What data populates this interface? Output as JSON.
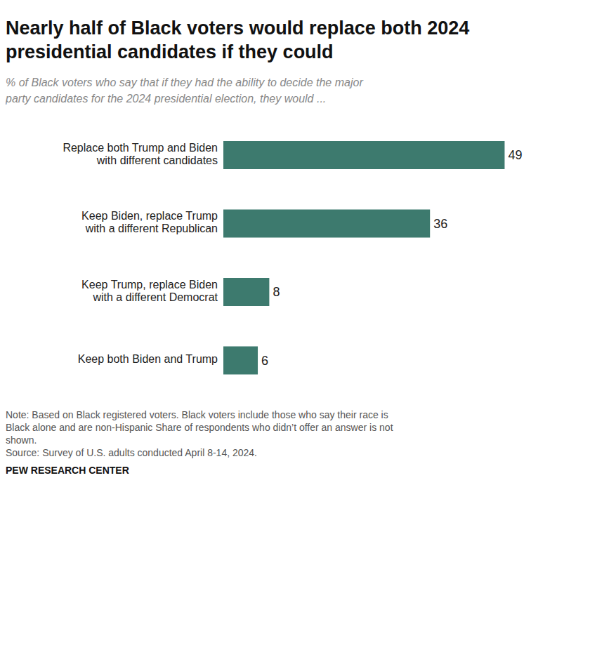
{
  "chart_data": {
    "type": "bar",
    "orientation": "horizontal",
    "title": "Nearly half of Black voters would replace both 2024\npresidential candidates if they could",
    "subtitle": "% of Black voters who say that if they had the ability to decide the major\nparty candidates for the 2024 presidential election, they would ...",
    "categories": [
      "Replace both Trump and Biden\nwith different candidates",
      "Keep Biden, replace Trump\nwith a different Republican",
      "Keep Trump, replace Biden\nwith a different Democrat",
      "Keep both Biden and Trump"
    ],
    "values": [
      49,
      36,
      8,
      6
    ],
    "value_labels": [
      "49",
      "36",
      "8",
      "6"
    ],
    "color": "#3d7a6e",
    "data_labels": true,
    "xlim": [
      0,
      58
    ],
    "grid": false,
    "tick_labels": "y",
    "notes": [
      "Note: Based on Black registered voters. Black voters include those who say their race is",
      "Black alone and are non-Hispanic Share of respondents who didn’t offer an answer is not",
      "shown.",
      "Source: Survey of U.S. adults conducted April 8-14, 2024."
    ],
    "source": "PEW RESEARCH CENTER"
  }
}
